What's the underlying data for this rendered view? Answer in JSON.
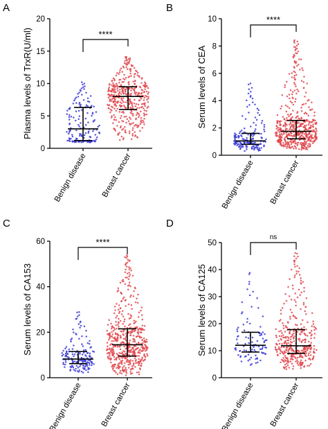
{
  "colors": {
    "benign": "#3a3ad6",
    "cancer": "#e0484e",
    "axis": "#000000"
  },
  "chart_data": [
    {
      "panel": "A",
      "type": "scatter",
      "subtype": "dot-plot with median and interquartile range",
      "ylabel": "Plasma levels of TrxR(U/ml)",
      "ylim": [
        0,
        20
      ],
      "yticks": [
        "0",
        "5",
        "10",
        "15",
        "20"
      ],
      "categories": [
        "Benign disease",
        "Breast cancer"
      ],
      "significance": "****",
      "series": [
        {
          "category": "Benign disease",
          "n_points": 150,
          "median": 3.0,
          "q1": 1.2,
          "q3": 6.3,
          "min": 0.9,
          "max": 10.3
        },
        {
          "category": "Breast cancer",
          "n_points": 420,
          "median": 8.0,
          "q1": 6.0,
          "q3": 9.5,
          "min": 1.1,
          "max": 14.2
        }
      ]
    },
    {
      "panel": "B",
      "type": "scatter",
      "subtype": "dot-plot with median and interquartile range",
      "ylabel": "Serum levels of CEA",
      "ylim": [
        0,
        10
      ],
      "yticks": [
        "0",
        "2",
        "4",
        "6",
        "8",
        "10"
      ],
      "categories": [
        "Benign disease",
        "Breast cancer"
      ],
      "significance": "****",
      "series": [
        {
          "category": "Benign disease",
          "n_points": 170,
          "median": 1.05,
          "q1": 0.8,
          "q3": 1.6,
          "min": 0.3,
          "max": 5.4
        },
        {
          "category": "Breast cancer",
          "n_points": 520,
          "median": 1.75,
          "q1": 1.2,
          "q3": 2.55,
          "min": 0.4,
          "max": 8.5
        }
      ]
    },
    {
      "panel": "C",
      "type": "scatter",
      "subtype": "dot-plot with median and interquartile range",
      "ylabel": "Serum levels of CA153",
      "ylim": [
        0,
        60
      ],
      "yticks": [
        "0",
        "20",
        "40",
        "60"
      ],
      "categories": [
        "Benign disease",
        "Breast cancer"
      ],
      "significance": "****",
      "series": [
        {
          "category": "Benign disease",
          "n_points": 170,
          "median": 8.2,
          "q1": 6.2,
          "q3": 11.5,
          "min": 2.0,
          "max": 29.5
        },
        {
          "category": "Breast cancer",
          "n_points": 520,
          "median": 14.5,
          "q1": 9.5,
          "q3": 21.5,
          "min": 1.0,
          "max": 54.0
        }
      ]
    },
    {
      "panel": "D",
      "type": "scatter",
      "subtype": "dot-plot with median and interquartile range",
      "ylabel": "Serum levels of CA125",
      "ylim": [
        0,
        50
      ],
      "yticks": [
        "0",
        "10",
        "20",
        "30",
        "40",
        "50"
      ],
      "categories": [
        "Benign disease",
        "Breast cancer"
      ],
      "significance": "ns",
      "series": [
        {
          "category": "Benign disease",
          "n_points": 100,
          "median": 12.0,
          "q1": 9.5,
          "q3": 16.8,
          "min": 4.5,
          "max": 40.0
        },
        {
          "category": "Breast cancer",
          "n_points": 380,
          "median": 11.8,
          "q1": 9.0,
          "q3": 17.8,
          "min": 3.0,
          "max": 46.5
        }
      ]
    }
  ]
}
